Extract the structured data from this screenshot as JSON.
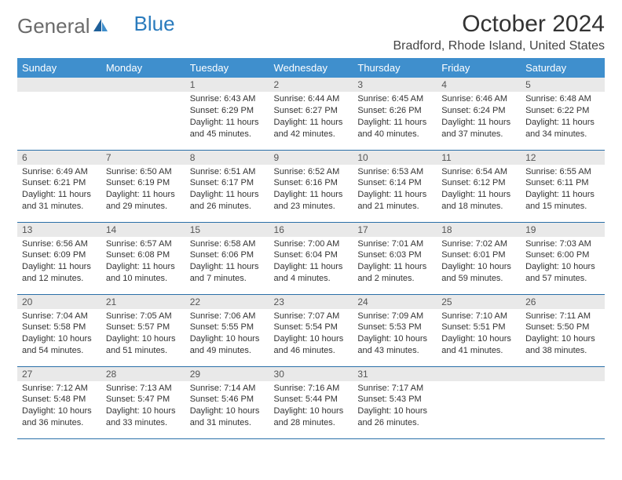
{
  "brand": {
    "part1": "General",
    "part2": "Blue"
  },
  "title": "October 2024",
  "location": "Bradford, Rhode Island, United States",
  "colors": {
    "header_bg": "#3f8fcd",
    "header_text": "#ffffff",
    "daynum_bg": "#e9e9e9",
    "cell_border": "#2a6fa8",
    "title_color": "#333333",
    "logo_gray": "#6b6b6b",
    "logo_blue": "#2a7bbd"
  },
  "day_headers": [
    "Sunday",
    "Monday",
    "Tuesday",
    "Wednesday",
    "Thursday",
    "Friday",
    "Saturday"
  ],
  "weeks": [
    [
      null,
      null,
      {
        "n": "1",
        "sr": "Sunrise: 6:43 AM",
        "ss": "Sunset: 6:29 PM",
        "dl": "Daylight: 11 hours and 45 minutes."
      },
      {
        "n": "2",
        "sr": "Sunrise: 6:44 AM",
        "ss": "Sunset: 6:27 PM",
        "dl": "Daylight: 11 hours and 42 minutes."
      },
      {
        "n": "3",
        "sr": "Sunrise: 6:45 AM",
        "ss": "Sunset: 6:26 PM",
        "dl": "Daylight: 11 hours and 40 minutes."
      },
      {
        "n": "4",
        "sr": "Sunrise: 6:46 AM",
        "ss": "Sunset: 6:24 PM",
        "dl": "Daylight: 11 hours and 37 minutes."
      },
      {
        "n": "5",
        "sr": "Sunrise: 6:48 AM",
        "ss": "Sunset: 6:22 PM",
        "dl": "Daylight: 11 hours and 34 minutes."
      }
    ],
    [
      {
        "n": "6",
        "sr": "Sunrise: 6:49 AM",
        "ss": "Sunset: 6:21 PM",
        "dl": "Daylight: 11 hours and 31 minutes."
      },
      {
        "n": "7",
        "sr": "Sunrise: 6:50 AM",
        "ss": "Sunset: 6:19 PM",
        "dl": "Daylight: 11 hours and 29 minutes."
      },
      {
        "n": "8",
        "sr": "Sunrise: 6:51 AM",
        "ss": "Sunset: 6:17 PM",
        "dl": "Daylight: 11 hours and 26 minutes."
      },
      {
        "n": "9",
        "sr": "Sunrise: 6:52 AM",
        "ss": "Sunset: 6:16 PM",
        "dl": "Daylight: 11 hours and 23 minutes."
      },
      {
        "n": "10",
        "sr": "Sunrise: 6:53 AM",
        "ss": "Sunset: 6:14 PM",
        "dl": "Daylight: 11 hours and 21 minutes."
      },
      {
        "n": "11",
        "sr": "Sunrise: 6:54 AM",
        "ss": "Sunset: 6:12 PM",
        "dl": "Daylight: 11 hours and 18 minutes."
      },
      {
        "n": "12",
        "sr": "Sunrise: 6:55 AM",
        "ss": "Sunset: 6:11 PM",
        "dl": "Daylight: 11 hours and 15 minutes."
      }
    ],
    [
      {
        "n": "13",
        "sr": "Sunrise: 6:56 AM",
        "ss": "Sunset: 6:09 PM",
        "dl": "Daylight: 11 hours and 12 minutes."
      },
      {
        "n": "14",
        "sr": "Sunrise: 6:57 AM",
        "ss": "Sunset: 6:08 PM",
        "dl": "Daylight: 11 hours and 10 minutes."
      },
      {
        "n": "15",
        "sr": "Sunrise: 6:58 AM",
        "ss": "Sunset: 6:06 PM",
        "dl": "Daylight: 11 hours and 7 minutes."
      },
      {
        "n": "16",
        "sr": "Sunrise: 7:00 AM",
        "ss": "Sunset: 6:04 PM",
        "dl": "Daylight: 11 hours and 4 minutes."
      },
      {
        "n": "17",
        "sr": "Sunrise: 7:01 AM",
        "ss": "Sunset: 6:03 PM",
        "dl": "Daylight: 11 hours and 2 minutes."
      },
      {
        "n": "18",
        "sr": "Sunrise: 7:02 AM",
        "ss": "Sunset: 6:01 PM",
        "dl": "Daylight: 10 hours and 59 minutes."
      },
      {
        "n": "19",
        "sr": "Sunrise: 7:03 AM",
        "ss": "Sunset: 6:00 PM",
        "dl": "Daylight: 10 hours and 57 minutes."
      }
    ],
    [
      {
        "n": "20",
        "sr": "Sunrise: 7:04 AM",
        "ss": "Sunset: 5:58 PM",
        "dl": "Daylight: 10 hours and 54 minutes."
      },
      {
        "n": "21",
        "sr": "Sunrise: 7:05 AM",
        "ss": "Sunset: 5:57 PM",
        "dl": "Daylight: 10 hours and 51 minutes."
      },
      {
        "n": "22",
        "sr": "Sunrise: 7:06 AM",
        "ss": "Sunset: 5:55 PM",
        "dl": "Daylight: 10 hours and 49 minutes."
      },
      {
        "n": "23",
        "sr": "Sunrise: 7:07 AM",
        "ss": "Sunset: 5:54 PM",
        "dl": "Daylight: 10 hours and 46 minutes."
      },
      {
        "n": "24",
        "sr": "Sunrise: 7:09 AM",
        "ss": "Sunset: 5:53 PM",
        "dl": "Daylight: 10 hours and 43 minutes."
      },
      {
        "n": "25",
        "sr": "Sunrise: 7:10 AM",
        "ss": "Sunset: 5:51 PM",
        "dl": "Daylight: 10 hours and 41 minutes."
      },
      {
        "n": "26",
        "sr": "Sunrise: 7:11 AM",
        "ss": "Sunset: 5:50 PM",
        "dl": "Daylight: 10 hours and 38 minutes."
      }
    ],
    [
      {
        "n": "27",
        "sr": "Sunrise: 7:12 AM",
        "ss": "Sunset: 5:48 PM",
        "dl": "Daylight: 10 hours and 36 minutes."
      },
      {
        "n": "28",
        "sr": "Sunrise: 7:13 AM",
        "ss": "Sunset: 5:47 PM",
        "dl": "Daylight: 10 hours and 33 minutes."
      },
      {
        "n": "29",
        "sr": "Sunrise: 7:14 AM",
        "ss": "Sunset: 5:46 PM",
        "dl": "Daylight: 10 hours and 31 minutes."
      },
      {
        "n": "30",
        "sr": "Sunrise: 7:16 AM",
        "ss": "Sunset: 5:44 PM",
        "dl": "Daylight: 10 hours and 28 minutes."
      },
      {
        "n": "31",
        "sr": "Sunrise: 7:17 AM",
        "ss": "Sunset: 5:43 PM",
        "dl": "Daylight: 10 hours and 26 minutes."
      },
      null,
      null
    ]
  ]
}
